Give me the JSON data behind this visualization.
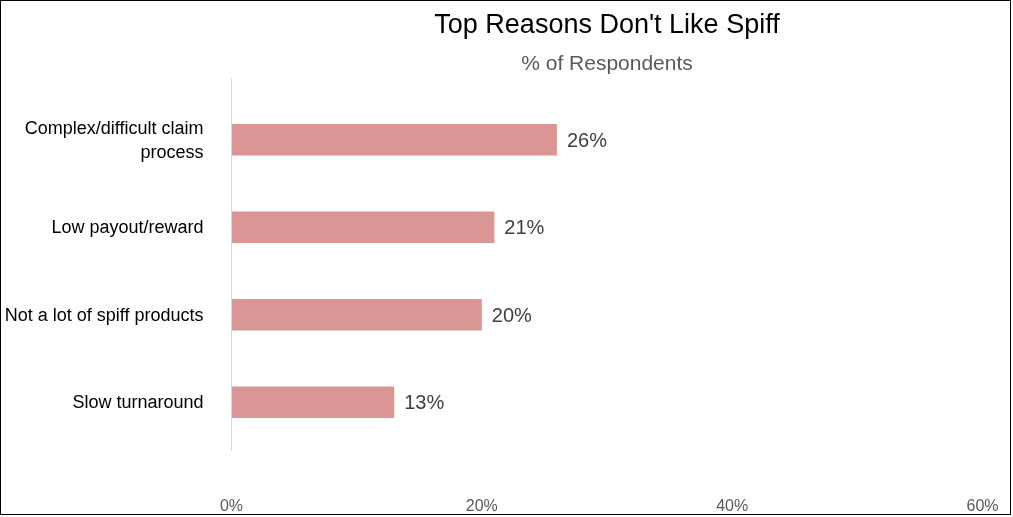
{
  "chart_data": {
    "type": "bar",
    "orientation": "horizontal",
    "title": "Top Reasons Don't Like Spiff",
    "subtitle": "% of Respondents",
    "categories": [
      "Complex/difficult claim process",
      "Low payout/reward",
      "Not a lot of spiff products",
      "Slow turnaround"
    ],
    "values": [
      26,
      21,
      20,
      13
    ],
    "value_labels": [
      "26%",
      "21%",
      "20%",
      "13%"
    ],
    "color": "#da9694",
    "xlim": [
      0,
      60
    ],
    "xticks": [
      {
        "value": 0,
        "label": "0%"
      },
      {
        "value": 20,
        "label": "20%"
      },
      {
        "value": 40,
        "label": "40%"
      },
      {
        "value": 60,
        "label": "60%"
      }
    ],
    "grid": false
  }
}
